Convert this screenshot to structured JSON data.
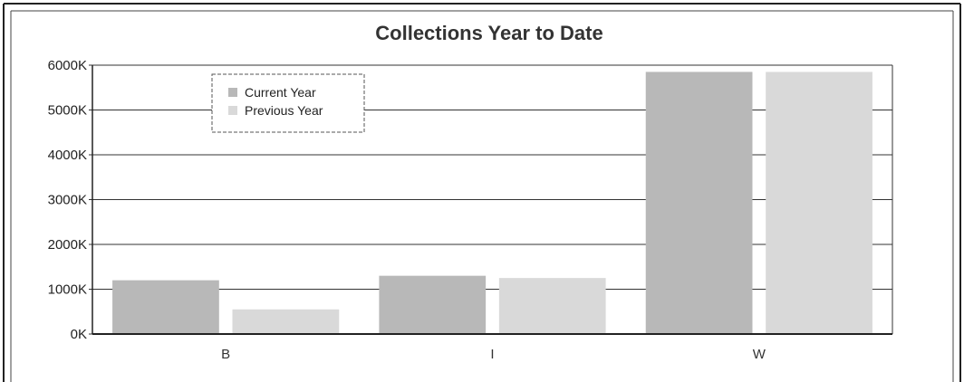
{
  "chart_data": {
    "type": "bar",
    "title": "Collections Year to Date",
    "xlabel": "",
    "ylabel": "",
    "categories": [
      "B",
      "I",
      "W"
    ],
    "series": [
      {
        "name": "Current Year",
        "values": [
          1200,
          1300,
          5850
        ],
        "color": "#b8b8b8"
      },
      {
        "name": "Previous Year",
        "values": [
          550,
          1250,
          5850
        ],
        "color": "#d9d9d9"
      }
    ],
    "ylim": [
      0,
      6000
    ],
    "yticks": [
      0,
      1000,
      2000,
      3000,
      4000,
      5000,
      6000
    ],
    "ytick_labels": [
      "0K",
      "1000K",
      "2000K",
      "3000K",
      "4000K",
      "5000K",
      "6000K"
    ],
    "grid": true,
    "legend": "top-left"
  }
}
